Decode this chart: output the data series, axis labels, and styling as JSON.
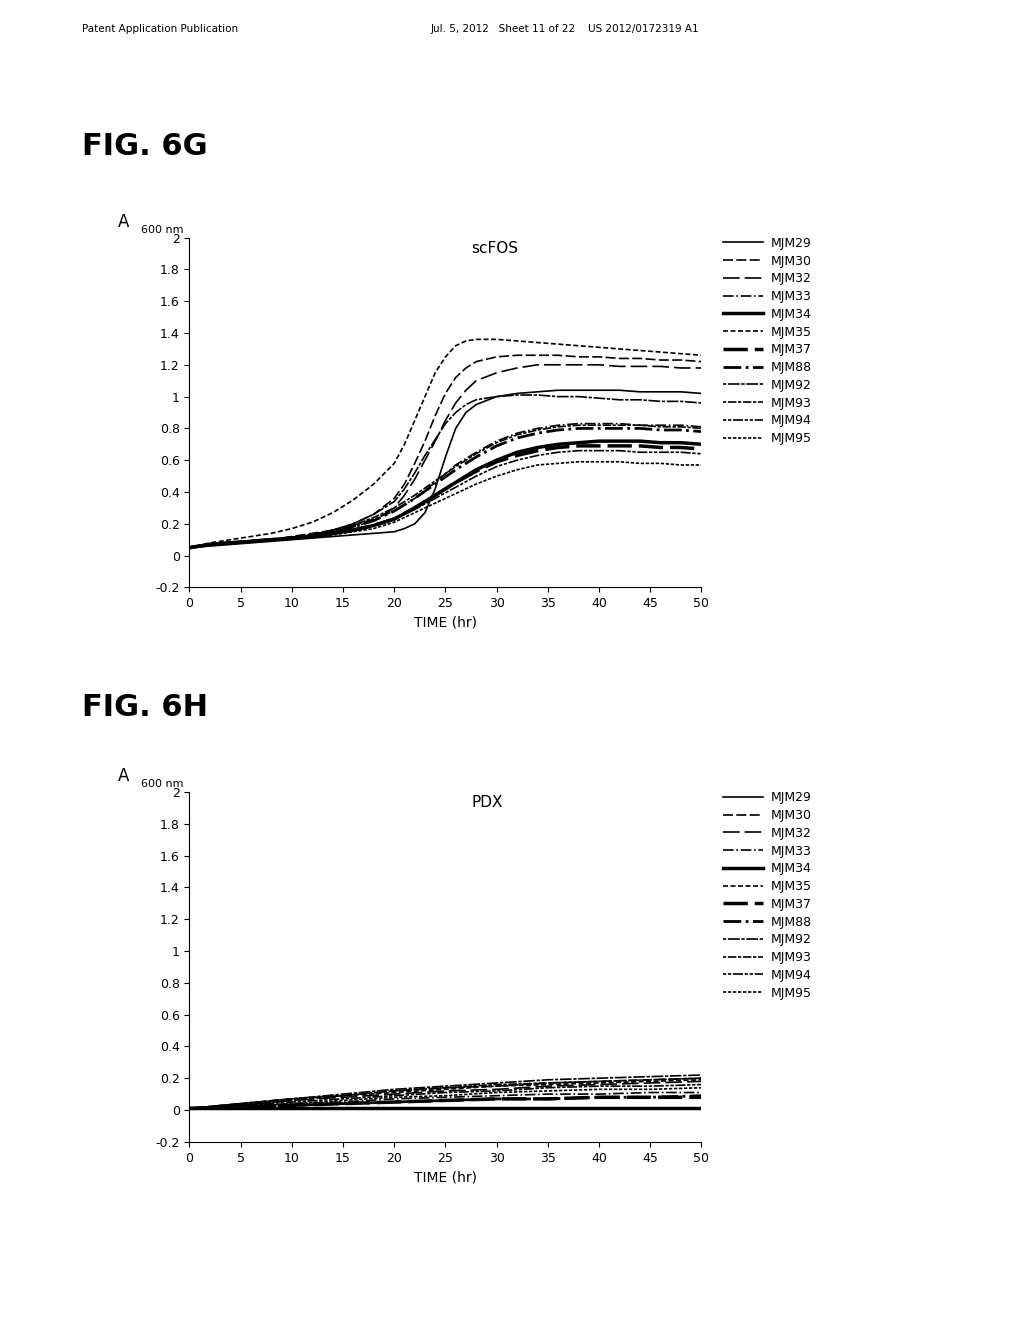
{
  "series_names": [
    "MJM29",
    "MJM30",
    "MJM32",
    "MJM33",
    "MJM34",
    "MJM35",
    "MJM37",
    "MJM88",
    "MJM92",
    "MJM93",
    "MJM94",
    "MJM95"
  ],
  "substrate_6g": "scFOS",
  "substrate_6h": "PDX",
  "xlabel": "TIME (hr)",
  "ylim": [
    -0.2,
    2.0
  ],
  "yticks": [
    -0.2,
    0,
    0.2,
    0.4,
    0.6,
    0.8,
    1.0,
    1.2,
    1.4,
    1.6,
    1.8,
    2.0
  ],
  "ytick_labels": [
    "-0.2",
    "0",
    "0.2",
    "0.4",
    "0.6",
    "0.8",
    "1",
    "1.2",
    "1.4",
    "1.6",
    "1.8",
    "2"
  ],
  "xlim": [
    0,
    50
  ],
  "xticks": [
    0,
    5,
    10,
    15,
    20,
    25,
    30,
    35,
    40,
    45,
    50
  ],
  "scfos_data": {
    "MJM29": {
      "x": [
        0,
        2,
        4,
        6,
        8,
        10,
        12,
        14,
        16,
        18,
        20,
        21,
        22,
        23,
        24,
        25,
        26,
        27,
        28,
        30,
        32,
        34,
        36,
        38,
        40,
        42,
        44,
        46,
        48,
        50
      ],
      "y": [
        0.05,
        0.06,
        0.07,
        0.08,
        0.09,
        0.1,
        0.11,
        0.12,
        0.13,
        0.14,
        0.15,
        0.17,
        0.2,
        0.27,
        0.42,
        0.62,
        0.8,
        0.9,
        0.95,
        1.0,
        1.02,
        1.03,
        1.04,
        1.04,
        1.04,
        1.04,
        1.03,
        1.03,
        1.03,
        1.02
      ]
    },
    "MJM30": {
      "x": [
        0,
        2,
        4,
        6,
        8,
        10,
        12,
        14,
        16,
        18,
        20,
        21,
        22,
        23,
        24,
        25,
        26,
        27,
        28,
        30,
        32,
        34,
        36,
        38,
        40,
        42,
        44,
        46,
        48,
        50
      ],
      "y": [
        0.05,
        0.07,
        0.08,
        0.09,
        0.1,
        0.12,
        0.14,
        0.16,
        0.2,
        0.26,
        0.36,
        0.45,
        0.58,
        0.72,
        0.88,
        1.02,
        1.12,
        1.18,
        1.22,
        1.25,
        1.26,
        1.26,
        1.26,
        1.25,
        1.25,
        1.24,
        1.24,
        1.23,
        1.23,
        1.22
      ]
    },
    "MJM32": {
      "x": [
        0,
        2,
        4,
        6,
        8,
        10,
        12,
        14,
        16,
        18,
        20,
        21,
        22,
        23,
        24,
        25,
        26,
        27,
        28,
        30,
        32,
        34,
        36,
        38,
        40,
        42,
        44,
        46,
        48,
        50
      ],
      "y": [
        0.05,
        0.07,
        0.08,
        0.09,
        0.1,
        0.11,
        0.13,
        0.15,
        0.18,
        0.22,
        0.3,
        0.38,
        0.48,
        0.6,
        0.72,
        0.85,
        0.96,
        1.04,
        1.1,
        1.15,
        1.18,
        1.2,
        1.2,
        1.2,
        1.2,
        1.19,
        1.19,
        1.19,
        1.18,
        1.18
      ]
    },
    "MJM33": {
      "x": [
        0,
        2,
        4,
        6,
        8,
        10,
        12,
        14,
        16,
        18,
        20,
        22,
        24,
        26,
        28,
        30,
        32,
        34,
        36,
        38,
        40,
        42,
        44,
        46,
        48,
        50
      ],
      "y": [
        0.05,
        0.07,
        0.08,
        0.09,
        0.1,
        0.11,
        0.13,
        0.16,
        0.19,
        0.23,
        0.28,
        0.36,
        0.46,
        0.57,
        0.65,
        0.72,
        0.77,
        0.8,
        0.82,
        0.83,
        0.83,
        0.83,
        0.82,
        0.82,
        0.82,
        0.81
      ]
    },
    "MJM34": {
      "x": [
        0,
        2,
        4,
        6,
        8,
        10,
        12,
        14,
        16,
        18,
        20,
        22,
        24,
        26,
        28,
        30,
        32,
        34,
        36,
        38,
        40,
        42,
        44,
        46,
        48,
        50
      ],
      "y": [
        0.05,
        0.07,
        0.08,
        0.09,
        0.1,
        0.11,
        0.12,
        0.14,
        0.16,
        0.19,
        0.23,
        0.3,
        0.38,
        0.46,
        0.54,
        0.6,
        0.65,
        0.68,
        0.7,
        0.71,
        0.72,
        0.72,
        0.72,
        0.71,
        0.71,
        0.7
      ]
    },
    "MJM35": {
      "x": [
        0,
        2,
        4,
        6,
        8,
        10,
        12,
        14,
        16,
        18,
        20,
        21,
        22,
        23,
        24,
        25,
        26,
        27,
        28,
        30,
        32,
        34,
        36,
        38,
        40,
        42,
        44,
        46,
        48,
        50
      ],
      "y": [
        0.05,
        0.08,
        0.1,
        0.12,
        0.14,
        0.17,
        0.21,
        0.27,
        0.35,
        0.45,
        0.58,
        0.7,
        0.85,
        1.0,
        1.15,
        1.25,
        1.32,
        1.35,
        1.36,
        1.36,
        1.35,
        1.34,
        1.33,
        1.32,
        1.31,
        1.3,
        1.29,
        1.28,
        1.27,
        1.26
      ]
    },
    "MJM37": {
      "x": [
        0,
        2,
        4,
        6,
        8,
        10,
        12,
        14,
        16,
        18,
        20,
        22,
        24,
        26,
        28,
        30,
        32,
        34,
        36,
        38,
        40,
        42,
        44,
        46,
        48,
        50
      ],
      "y": [
        0.05,
        0.07,
        0.08,
        0.09,
        0.1,
        0.11,
        0.12,
        0.14,
        0.16,
        0.19,
        0.23,
        0.3,
        0.38,
        0.46,
        0.53,
        0.59,
        0.63,
        0.66,
        0.68,
        0.69,
        0.69,
        0.69,
        0.69,
        0.68,
        0.68,
        0.67
      ]
    },
    "MJM88": {
      "x": [
        0,
        2,
        4,
        6,
        8,
        10,
        12,
        14,
        16,
        18,
        20,
        22,
        24,
        26,
        28,
        30,
        32,
        34,
        36,
        38,
        40,
        42,
        44,
        46,
        48,
        50
      ],
      "y": [
        0.05,
        0.07,
        0.08,
        0.09,
        0.1,
        0.11,
        0.13,
        0.15,
        0.18,
        0.22,
        0.28,
        0.36,
        0.45,
        0.54,
        0.62,
        0.69,
        0.74,
        0.77,
        0.79,
        0.8,
        0.8,
        0.8,
        0.8,
        0.79,
        0.79,
        0.78
      ]
    },
    "MJM92": {
      "x": [
        0,
        2,
        4,
        6,
        8,
        10,
        12,
        14,
        16,
        18,
        20,
        21,
        22,
        23,
        24,
        25,
        26,
        27,
        28,
        30,
        32,
        34,
        36,
        38,
        40,
        42,
        44,
        46,
        48,
        50
      ],
      "y": [
        0.05,
        0.07,
        0.08,
        0.09,
        0.1,
        0.11,
        0.13,
        0.16,
        0.2,
        0.26,
        0.34,
        0.42,
        0.52,
        0.63,
        0.73,
        0.83,
        0.9,
        0.95,
        0.98,
        1.0,
        1.01,
        1.01,
        1.0,
        1.0,
        0.99,
        0.98,
        0.98,
        0.97,
        0.97,
        0.96
      ]
    },
    "MJM93": {
      "x": [
        0,
        2,
        4,
        6,
        8,
        10,
        12,
        14,
        16,
        18,
        20,
        22,
        24,
        26,
        28,
        30,
        32,
        34,
        36,
        38,
        40,
        42,
        44,
        46,
        48,
        50
      ],
      "y": [
        0.05,
        0.07,
        0.08,
        0.09,
        0.1,
        0.11,
        0.13,
        0.16,
        0.19,
        0.24,
        0.3,
        0.38,
        0.47,
        0.56,
        0.64,
        0.71,
        0.76,
        0.79,
        0.81,
        0.82,
        0.82,
        0.82,
        0.82,
        0.81,
        0.81,
        0.8
      ]
    },
    "MJM94": {
      "x": [
        0,
        2,
        4,
        6,
        8,
        10,
        12,
        14,
        16,
        18,
        20,
        22,
        24,
        26,
        28,
        30,
        32,
        34,
        36,
        38,
        40,
        42,
        44,
        46,
        48,
        50
      ],
      "y": [
        0.05,
        0.07,
        0.08,
        0.09,
        0.1,
        0.11,
        0.12,
        0.14,
        0.16,
        0.19,
        0.23,
        0.29,
        0.36,
        0.43,
        0.5,
        0.56,
        0.6,
        0.63,
        0.65,
        0.66,
        0.66,
        0.66,
        0.65,
        0.65,
        0.65,
        0.64
      ]
    },
    "MJM95": {
      "x": [
        0,
        2,
        4,
        6,
        8,
        10,
        12,
        14,
        16,
        18,
        20,
        22,
        24,
        26,
        28,
        30,
        32,
        34,
        36,
        38,
        40,
        42,
        44,
        46,
        48,
        50
      ],
      "y": [
        0.05,
        0.07,
        0.08,
        0.09,
        0.1,
        0.11,
        0.12,
        0.13,
        0.15,
        0.17,
        0.21,
        0.27,
        0.33,
        0.39,
        0.45,
        0.5,
        0.54,
        0.57,
        0.58,
        0.59,
        0.59,
        0.59,
        0.58,
        0.58,
        0.57,
        0.57
      ]
    }
  },
  "pdx_data": {
    "MJM29": {
      "x": [
        0,
        5,
        10,
        15,
        20,
        25,
        30,
        35,
        40,
        45,
        50
      ],
      "y": [
        0.01,
        0.01,
        0.01,
        0.01,
        0.01,
        0.01,
        0.01,
        0.01,
        0.01,
        0.01,
        0.01
      ]
    },
    "MJM30": {
      "x": [
        0,
        5,
        10,
        15,
        20,
        25,
        30,
        35,
        40,
        45,
        50
      ],
      "y": [
        0.01,
        0.04,
        0.07,
        0.09,
        0.12,
        0.14,
        0.15,
        0.17,
        0.18,
        0.19,
        0.2
      ]
    },
    "MJM32": {
      "x": [
        0,
        5,
        10,
        15,
        20,
        25,
        30,
        35,
        40,
        45,
        50
      ],
      "y": [
        0.01,
        0.03,
        0.06,
        0.08,
        0.1,
        0.12,
        0.13,
        0.15,
        0.16,
        0.17,
        0.18
      ]
    },
    "MJM33": {
      "x": [
        0,
        5,
        10,
        15,
        20,
        25,
        30,
        35,
        40,
        45,
        50
      ],
      "y": [
        0.01,
        0.02,
        0.04,
        0.05,
        0.07,
        0.08,
        0.09,
        0.1,
        0.1,
        0.11,
        0.11
      ]
    },
    "MJM34": {
      "x": [
        0,
        5,
        10,
        15,
        20,
        25,
        30,
        35,
        40,
        45,
        50
      ],
      "y": [
        0.01,
        0.01,
        0.01,
        0.01,
        0.01,
        0.01,
        0.01,
        0.01,
        0.01,
        0.01,
        0.01
      ]
    },
    "MJM35": {
      "x": [
        0,
        5,
        10,
        15,
        20,
        25,
        30,
        35,
        40,
        45,
        50
      ],
      "y": [
        0.01,
        0.03,
        0.06,
        0.09,
        0.11,
        0.13,
        0.15,
        0.16,
        0.17,
        0.18,
        0.19
      ]
    },
    "MJM37": {
      "x": [
        0,
        5,
        10,
        15,
        20,
        25,
        30,
        35,
        40,
        45,
        50
      ],
      "y": [
        0.01,
        0.02,
        0.03,
        0.04,
        0.05,
        0.06,
        0.07,
        0.07,
        0.08,
        0.08,
        0.08
      ]
    },
    "MJM88": {
      "x": [
        0,
        5,
        10,
        15,
        20,
        25,
        30,
        35,
        40,
        45,
        50
      ],
      "y": [
        0.01,
        0.02,
        0.03,
        0.04,
        0.05,
        0.06,
        0.07,
        0.07,
        0.08,
        0.08,
        0.09
      ]
    },
    "MJM92": {
      "x": [
        0,
        5,
        10,
        15,
        20,
        25,
        30,
        35,
        40,
        45,
        50
      ],
      "y": [
        0.01,
        0.04,
        0.07,
        0.1,
        0.13,
        0.15,
        0.17,
        0.19,
        0.2,
        0.21,
        0.22
      ]
    },
    "MJM93": {
      "x": [
        0,
        5,
        10,
        15,
        20,
        25,
        30,
        35,
        40,
        45,
        50
      ],
      "y": [
        0.01,
        0.04,
        0.07,
        0.09,
        0.12,
        0.14,
        0.16,
        0.17,
        0.18,
        0.19,
        0.2
      ]
    },
    "MJM94": {
      "x": [
        0,
        5,
        10,
        15,
        20,
        25,
        30,
        35,
        40,
        45,
        50
      ],
      "y": [
        0.01,
        0.03,
        0.05,
        0.07,
        0.09,
        0.11,
        0.12,
        0.14,
        0.15,
        0.15,
        0.16
      ]
    },
    "MJM95": {
      "x": [
        0,
        5,
        10,
        15,
        20,
        25,
        30,
        35,
        40,
        45,
        50
      ],
      "y": [
        0.01,
        0.02,
        0.04,
        0.06,
        0.08,
        0.09,
        0.11,
        0.12,
        0.13,
        0.13,
        0.14
      ]
    }
  }
}
